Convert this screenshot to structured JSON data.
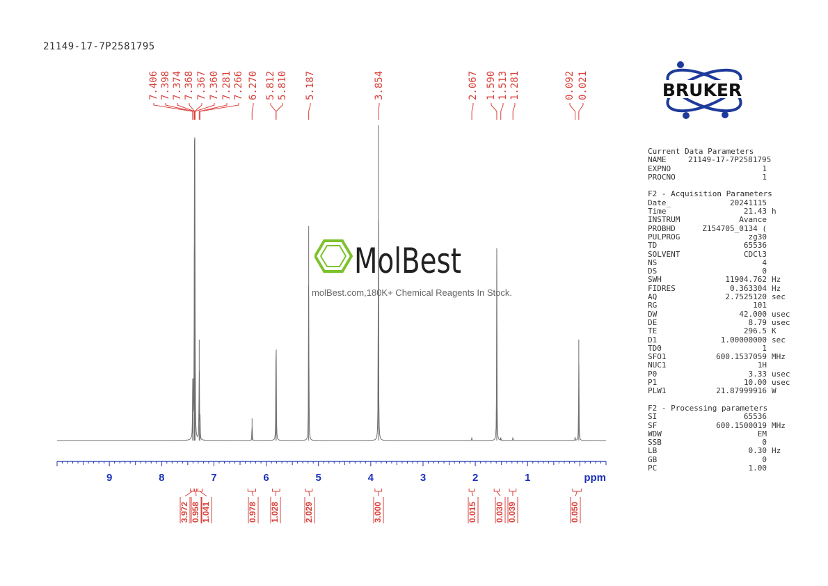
{
  "sample_name": "21149-17-7P2581795",
  "logo": {
    "brand_text": "BRUKER"
  },
  "watermark": {
    "brand": "MolBest",
    "tagline": "molBest.com,180K+ Chemical Reagents In Stock."
  },
  "parameters": {
    "sections": [
      {
        "title": "Current Data Parameters",
        "rows": [
          {
            "key": "NAME",
            "value": "21149-17-7P2581795",
            "unit": ""
          },
          {
            "key": "EXPNO",
            "value": "1",
            "unit": ""
          },
          {
            "key": "PROCNO",
            "value": "1",
            "unit": ""
          }
        ]
      },
      {
        "title": "F2 - Acquisition Parameters",
        "rows": [
          {
            "key": "Date_",
            "value": "20241115",
            "unit": ""
          },
          {
            "key": "Time",
            "value": "21.43",
            "unit": "h"
          },
          {
            "key": "INSTRUM",
            "value": "Avance",
            "unit": ""
          },
          {
            "key": "PROBHD",
            "value": "Z154705_0134 (",
            "unit": ""
          },
          {
            "key": "PULPROG",
            "value": "zg30",
            "unit": ""
          },
          {
            "key": "TD",
            "value": "65536",
            "unit": ""
          },
          {
            "key": "SOLVENT",
            "value": "CDCl3",
            "unit": ""
          },
          {
            "key": "NS",
            "value": "4",
            "unit": ""
          },
          {
            "key": "DS",
            "value": "0",
            "unit": ""
          },
          {
            "key": "SWH",
            "value": "11904.762",
            "unit": "Hz"
          },
          {
            "key": "FIDRES",
            "value": "0.363304",
            "unit": "Hz"
          },
          {
            "key": "AQ",
            "value": "2.7525120",
            "unit": "sec"
          },
          {
            "key": "RG",
            "value": "101",
            "unit": ""
          },
          {
            "key": "DW",
            "value": "42.000",
            "unit": "usec"
          },
          {
            "key": "DE",
            "value": "8.79",
            "unit": "usec"
          },
          {
            "key": "TE",
            "value": "296.5",
            "unit": "K"
          },
          {
            "key": "D1",
            "value": "1.00000000",
            "unit": "sec"
          },
          {
            "key": "TD0",
            "value": "1",
            "unit": ""
          },
          {
            "key": "SFO1",
            "value": "600.1537059",
            "unit": "MHz"
          },
          {
            "key": "NUC1",
            "value": "1H",
            "unit": ""
          },
          {
            "key": "P0",
            "value": "3.33",
            "unit": "usec"
          },
          {
            "key": "P1",
            "value": "10.00",
            "unit": "usec"
          },
          {
            "key": "PLW1",
            "value": "21.87999916",
            "unit": "W"
          }
        ]
      },
      {
        "title": "F2 - Processing parameters",
        "rows": [
          {
            "key": "SI",
            "value": "65536",
            "unit": ""
          },
          {
            "key": "SF",
            "value": "600.1500019",
            "unit": "MHz"
          },
          {
            "key": "WDW",
            "value": "EM",
            "unit": ""
          },
          {
            "key": "SSB",
            "value": "0",
            "unit": ""
          },
          {
            "key": "LB",
            "value": "0.30",
            "unit": "Hz"
          },
          {
            "key": "GB",
            "value": "0",
            "unit": ""
          },
          {
            "key": "PC",
            "value": "1.00",
            "unit": ""
          }
        ]
      }
    ]
  },
  "chart_data": {
    "type": "line",
    "title": "21149-17-7P2581795",
    "xlabel": "ppm",
    "x_reversed": true,
    "xlim": [
      10.0,
      -0.5
    ],
    "ylim": [
      0,
      1
    ],
    "x_ticks": [
      9,
      8,
      7,
      6,
      5,
      4,
      3,
      2,
      1
    ],
    "x_tick_labels": [
      "9",
      "8",
      "7",
      "6",
      "5",
      "4",
      "3",
      "2",
      "1"
    ],
    "peak_labels": [
      "7.406",
      "7.398",
      "7.374",
      "7.368",
      "7.367",
      "7.360",
      "7.281",
      "7.266",
      "6.270",
      "5.812",
      "5.810",
      "5.187",
      "3.854",
      "2.067",
      "1.590",
      "1.513",
      "1.281",
      "0.092",
      "0.021"
    ],
    "peaks": [
      {
        "ppm": 7.406,
        "height": 0.16
      },
      {
        "ppm": 7.398,
        "height": 0.14
      },
      {
        "ppm": 7.374,
        "height": 0.6
      },
      {
        "ppm": 7.368,
        "height": 0.62
      },
      {
        "ppm": 7.367,
        "height": 0.6
      },
      {
        "ppm": 7.36,
        "height": 0.2
      },
      {
        "ppm": 7.281,
        "height": 0.32
      },
      {
        "ppm": 7.266,
        "height": 0.07
      },
      {
        "ppm": 6.27,
        "height": 0.07
      },
      {
        "ppm": 5.812,
        "height": 0.25
      },
      {
        "ppm": 5.81,
        "height": 0.24
      },
      {
        "ppm": 5.187,
        "height": 0.68
      },
      {
        "ppm": 3.854,
        "height": 1.0
      },
      {
        "ppm": 2.067,
        "height": 0.01
      },
      {
        "ppm": 1.59,
        "height": 0.61
      },
      {
        "ppm": 1.513,
        "height": 0.01
      },
      {
        "ppm": 1.281,
        "height": 0.01
      },
      {
        "ppm": 0.092,
        "height": 0.01
      },
      {
        "ppm": 0.021,
        "height": 0.32
      }
    ],
    "integrals": [
      {
        "label": "3.972",
        "from": 7.45,
        "to": 7.38
      },
      {
        "label": "0.958",
        "from": 7.37,
        "to": 7.33
      },
      {
        "label": "1.041",
        "from": 7.31,
        "to": 7.22
      },
      {
        "label": "0.978",
        "from": 6.35,
        "to": 6.2
      },
      {
        "label": "1.028",
        "from": 5.88,
        "to": 5.74
      },
      {
        "label": "2.029",
        "from": 5.25,
        "to": 5.12
      },
      {
        "label": "3.000",
        "from": 3.92,
        "to": 3.79
      },
      {
        "label": "0.015",
        "from": 2.12,
        "to": 2.02
      },
      {
        "label": "0.030",
        "from": 1.64,
        "to": 1.54
      },
      {
        "label": "0.039",
        "from": 1.35,
        "to": 1.22
      },
      {
        "label": "0.050",
        "from": 0.14,
        "to": -0.03
      }
    ],
    "colors": {
      "spectrum": "#6e6e6e",
      "annotation": "#d9413b",
      "axis": "#1d33b8"
    }
  }
}
